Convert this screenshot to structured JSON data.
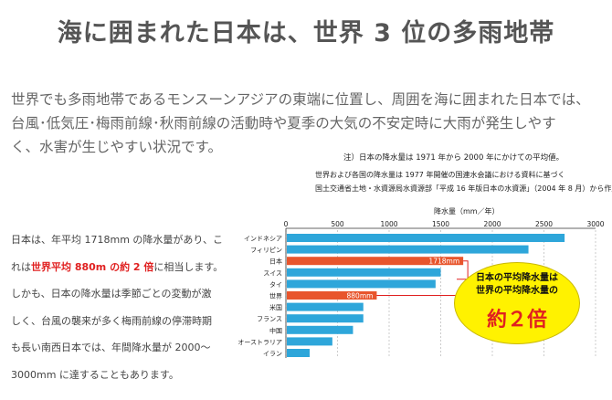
{
  "title": "海に囲まれた日本は、世界 3 位の多雨地帯",
  "intro": [
    "世界でも多雨地帯であるモンスーンアジアの東端に位置し、周囲を海に囲まれた日本では、",
    "台風･低気圧･梅雨前線･秋雨前線の活動時や夏季の大気の不安定時に大雨が発生しやす",
    "く、水害が生じやすい状況です。"
  ],
  "body": {
    "p1": "日本は、年平均 1718mm の降水量があり、こ",
    "p2a": "れは",
    "p2b": "世界平均 880m の約 2 倍",
    "p2c": "に相当します。",
    "p3": "しかも、日本の降水量は季節ごとの変動が激",
    "p4": "しく、台風の襲来が多く梅雨前線の停滞時期",
    "p5": "も長い南西日本では、年間降水量が 2000～",
    "p6": "3000mm に達することもあります。"
  },
  "notes": {
    "n1": "注）日本の降水量は 1971 年から 2000 年にかけての平均値。",
    "n2": "世界および各国の降水量は 1977 年開催の国連水会議における資料に基づく",
    "n3": "国土交通省土地・水資源局水資源部「平成 16 年版日本の水資源」（2004 年 8 月）から作成"
  },
  "callout": {
    "line1": "日本の平均降水量は",
    "line2": "世界の平均降水量の",
    "big": "約２倍"
  },
  "colors": {
    "bar": "#2ea6da",
    "highlight": "#e8552c",
    "callout": "#fff200",
    "grid": "#aaaaaa"
  },
  "chart_data": {
    "type": "bar",
    "orientation": "horizontal",
    "xlabel": "降水量（mm／年）",
    "xlim": [
      0,
      3000
    ],
    "xticks": [
      "0",
      "500",
      "1000",
      "1500",
      "2000",
      "2500",
      "3000"
    ],
    "categories": [
      "インドネシア",
      "フィリピン",
      "日本",
      "スイス",
      "タイ",
      "世界",
      "米国",
      "フランス",
      "中国",
      "オーストラリア",
      "イラン"
    ],
    "values": [
      2700,
      2350,
      1718,
      1500,
      1450,
      880,
      750,
      750,
      650,
      450,
      230
    ],
    "highlight": [
      "日本",
      "世界"
    ],
    "data_labels": {
      "日本": "1718mm",
      "世界": "880mm"
    }
  }
}
